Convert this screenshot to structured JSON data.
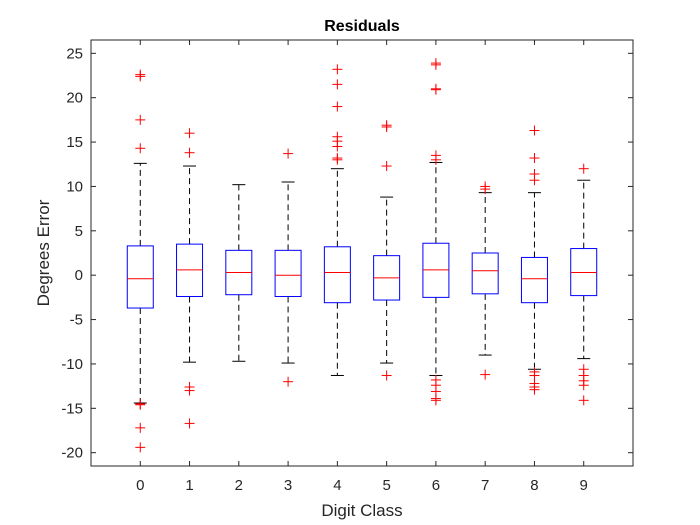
{
  "chart_data": {
    "type": "boxplot",
    "title": "Residuals",
    "xlabel": "Digit Class",
    "ylabel": "Degrees Error",
    "ylim": [
      -21.5,
      26.5
    ],
    "yticks": [
      -20,
      -15,
      -10,
      -5,
      0,
      5,
      10,
      15,
      20,
      25
    ],
    "categories": [
      "0",
      "1",
      "2",
      "3",
      "4",
      "5",
      "6",
      "7",
      "8",
      "9"
    ],
    "colors": {
      "box": "#0000ff",
      "median": "#ff0000",
      "whisker": "#000000",
      "outlier": "#ff0000",
      "axes": "#262626"
    },
    "boxes": [
      {
        "category": "0",
        "whisker_low": -14.4,
        "q1": -3.7,
        "median": -0.4,
        "q3": 3.3,
        "whisker_high": 12.6,
        "outliers": [
          22.6,
          22.4,
          17.5,
          14.3,
          -14.5,
          -14.6,
          -17.2,
          -19.4
        ]
      },
      {
        "category": "1",
        "whisker_low": -9.8,
        "q1": -2.4,
        "median": 0.6,
        "q3": 3.5,
        "whisker_high": 12.3,
        "outliers": [
          16.0,
          13.8,
          -12.6,
          -13.0,
          -16.7
        ]
      },
      {
        "category": "2",
        "whisker_low": -9.7,
        "q1": -2.2,
        "median": 0.3,
        "q3": 2.8,
        "whisker_high": 10.2,
        "outliers": []
      },
      {
        "category": "3",
        "whisker_low": -9.9,
        "q1": -2.4,
        "median": 0.0,
        "q3": 2.8,
        "whisker_high": 10.5,
        "outliers": [
          13.7,
          -12.0
        ]
      },
      {
        "category": "4",
        "whisker_low": -11.3,
        "q1": -3.1,
        "median": 0.3,
        "q3": 3.2,
        "whisker_high": 12.0,
        "outliers": [
          23.2,
          21.5,
          19.0,
          15.6,
          15.1,
          14.5,
          13.2,
          13.0
        ]
      },
      {
        "category": "5",
        "whisker_low": -9.9,
        "q1": -2.8,
        "median": -0.3,
        "q3": 2.2,
        "whisker_high": 8.8,
        "outliers": [
          16.9,
          16.7,
          12.3,
          -11.3
        ]
      },
      {
        "category": "6",
        "whisker_low": -11.3,
        "q1": -2.5,
        "median": 0.6,
        "q3": 3.6,
        "whisker_high": 12.7,
        "outliers": [
          23.9,
          23.7,
          21.0,
          20.9,
          13.5,
          13.0,
          -11.8,
          -12.4,
          -13.1,
          -13.9,
          -14.1
        ]
      },
      {
        "category": "7",
        "whisker_low": -9.0,
        "q1": -2.1,
        "median": 0.5,
        "q3": 2.5,
        "whisker_high": 9.3,
        "outliers": [
          10.0,
          9.7,
          -11.2
        ]
      },
      {
        "category": "8",
        "whisker_low": -10.6,
        "q1": -3.1,
        "median": -0.4,
        "q3": 2.0,
        "whisker_high": 9.3,
        "outliers": [
          16.3,
          13.2,
          11.4,
          10.7,
          -10.9,
          -11.3,
          -12.2,
          -12.6,
          -12.9
        ]
      },
      {
        "category": "9",
        "whisker_low": -9.4,
        "q1": -2.3,
        "median": 0.3,
        "q3": 3.0,
        "whisker_high": 10.7,
        "outliers": [
          12.0,
          -10.6,
          -11.3,
          -11.9,
          -12.4,
          -14.1
        ]
      }
    ]
  }
}
